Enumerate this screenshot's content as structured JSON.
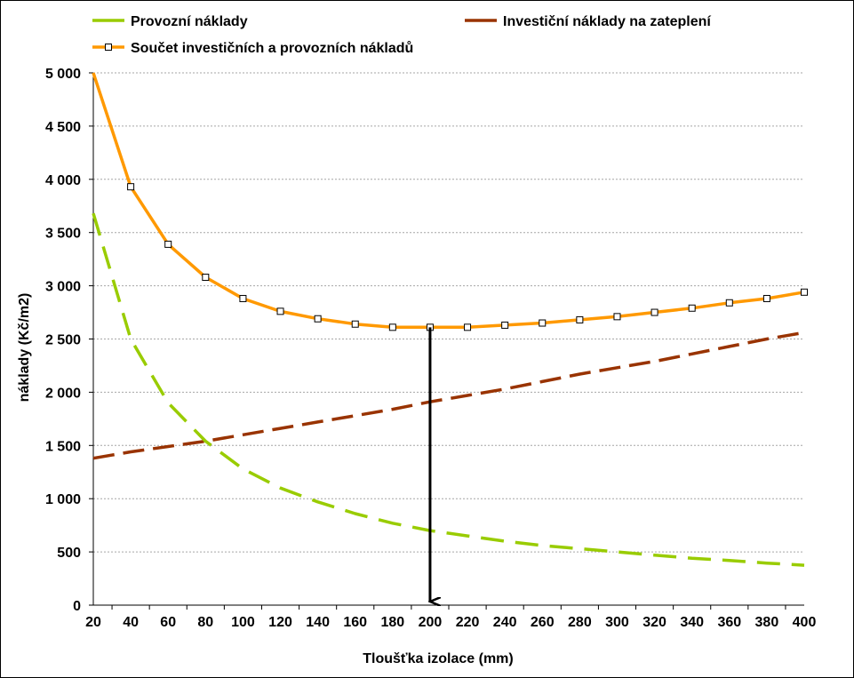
{
  "chart_data": {
    "type": "line",
    "xlabel": "Tloušťka izolace (mm)",
    "ylabel": "náklady (Kč/m2)",
    "xlim": [
      20,
      400
    ],
    "ylim": [
      0,
      5000
    ],
    "x_ticks": [
      20,
      40,
      60,
      80,
      100,
      120,
      140,
      160,
      180,
      200,
      220,
      240,
      260,
      280,
      300,
      320,
      340,
      360,
      380,
      400
    ],
    "y_ticks": [
      0,
      500,
      1000,
      1500,
      2000,
      2500,
      3000,
      3500,
      4000,
      4500,
      5000
    ],
    "y_tick_labels": [
      "0",
      "500",
      "1 000",
      "1 500",
      "2 000",
      "2 500",
      "3 000",
      "3 500",
      "4 000",
      "4 500",
      "5 000"
    ],
    "grid": "horizontal",
    "legend_position": "top",
    "x": [
      20,
      40,
      60,
      80,
      100,
      120,
      140,
      160,
      180,
      200,
      220,
      240,
      260,
      280,
      300,
      320,
      340,
      360,
      380,
      400
    ],
    "series": [
      {
        "name": "Provozní náklady",
        "color": "#99cc00",
        "style": "dashed",
        "values": [
          3680,
          2500,
          1900,
          1540,
          1280,
          1100,
          970,
          860,
          770,
          700,
          650,
          600,
          560,
          530,
          500,
          470,
          440,
          420,
          395,
          375
        ]
      },
      {
        "name": "Investiční náklady na zateplení",
        "color": "#993300",
        "style": "dashed",
        "values": [
          1380,
          1440,
          1490,
          1540,
          1600,
          1660,
          1720,
          1780,
          1840,
          1910,
          1970,
          2030,
          2100,
          2170,
          2230,
          2290,
          2360,
          2430,
          2500,
          2560
        ]
      },
      {
        "name": "Součet investičních a provozních nákladů",
        "color": "#ff9900",
        "style": "solid",
        "marker": "square",
        "values": [
          5000,
          3930,
          3390,
          3080,
          2880,
          2760,
          2690,
          2640,
          2610,
          2610,
          2610,
          2630,
          2650,
          2680,
          2710,
          2750,
          2790,
          2840,
          2880,
          2940
        ]
      }
    ],
    "annotation": {
      "type": "arrow",
      "x": 200,
      "from_y": 2610,
      "to_y": 0,
      "color": "#000000"
    }
  }
}
